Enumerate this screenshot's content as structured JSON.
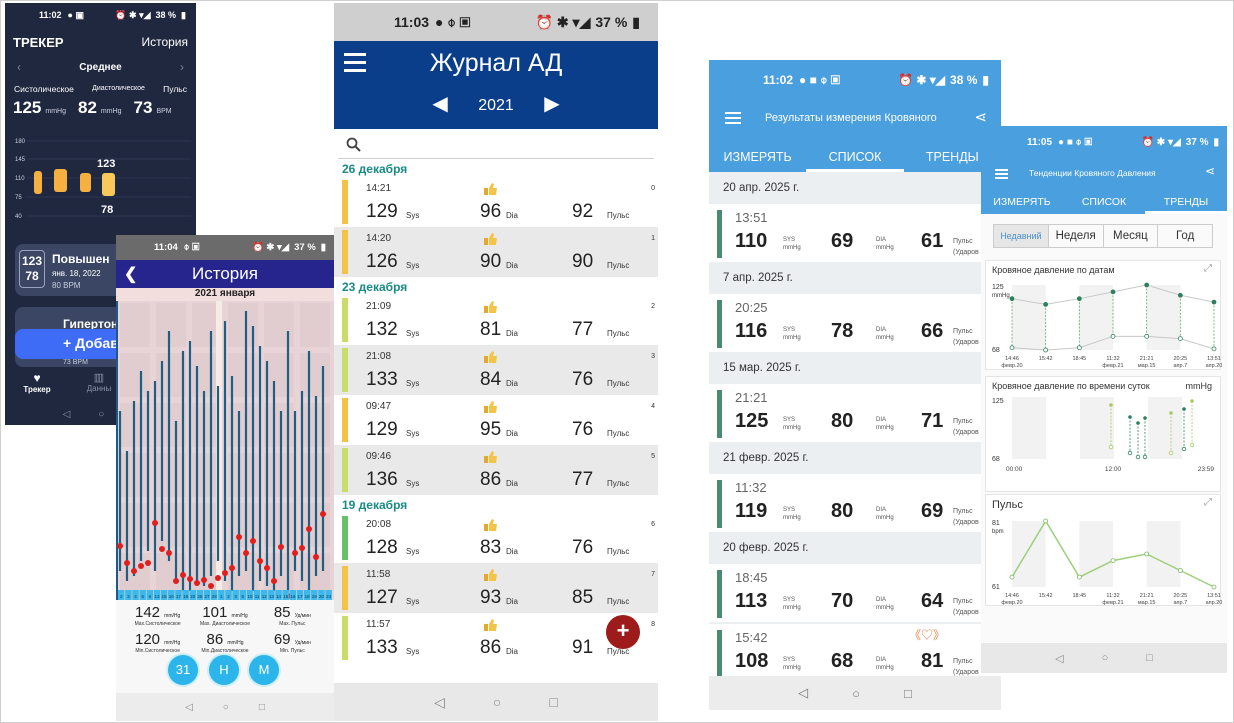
{
  "screen1": {
    "status": {
      "time": "11:02",
      "battery": "38 %"
    },
    "title": "ТРЕКЕР",
    "history_link": "История",
    "period": "Среднее",
    "headers": {
      "sys": "Систолическое",
      "dia": "Диастолическое",
      "pulse": "Пульс"
    },
    "values": {
      "sys": "125",
      "sys_unit": "mmHg",
      "dia": "82",
      "dia_unit": "mmHg",
      "pulse": "73",
      "pulse_unit": "BPM"
    },
    "y_ticks": [
      "180",
      "145",
      "110",
      "75",
      "40"
    ],
    "bar_label_high": "123",
    "bar_label_low": "78",
    "bar_color": "#f5b040",
    "card1": {
      "sys": "123",
      "dia": "78",
      "title": "Повышен",
      "date": "янв. 18, 2022",
      "pulse": "80 BPM"
    },
    "card2": {
      "title": "Гипертони",
      "pulse": "73 BPM"
    },
    "add_button": "+ Добав",
    "tabs": {
      "tracker": "Трекер",
      "data": "Данны"
    }
  },
  "screen2": {
    "status": {
      "time": "11:04",
      "battery": "37 %"
    },
    "title": "История",
    "month": "2021 января",
    "day_labels": [
      "2",
      "3",
      "4",
      "5",
      "6",
      "13",
      "15",
      "16",
      "17",
      "18",
      "20",
      "26",
      "27",
      "28",
      "1",
      "2",
      "3",
      "5",
      "10",
      "11",
      "12",
      "13",
      "14",
      "15",
      "16",
      "17",
      "18",
      "19",
      "20",
      "23"
    ],
    "stats": [
      {
        "value": "142",
        "unit": "mm/Hg",
        "label": "Max.Систолическое"
      },
      {
        "value": "101",
        "unit": "mm/Hg",
        "label": "Max. Диастолическое"
      },
      {
        "value": "85",
        "unit": "Уд/мин",
        "label": "Max. Пульс"
      },
      {
        "value": "120",
        "unit": "mm/Hg",
        "label": "Min.Систолическое"
      },
      {
        "value": "86",
        "unit": "mm/Hg",
        "label": "Min.Диастолическое"
      },
      {
        "value": "69",
        "unit": "Уд/мин",
        "label": "Min. Пульс"
      }
    ],
    "buttons": [
      "31",
      "Н",
      "М"
    ]
  },
  "screen3": {
    "status": {
      "time": "11:03",
      "battery": "37 %"
    },
    "title": "Журнал АД",
    "year": "2021",
    "groups": [
      {
        "date": "26 декабря",
        "rows": [
          {
            "time": "14:21",
            "sys": "129",
            "dia": "96",
            "pulse": "92",
            "no": "0",
            "color": "#f5c146"
          },
          {
            "time": "14:20",
            "sys": "126",
            "dia": "90",
            "pulse": "90",
            "no": "1",
            "color": "#f5c146"
          }
        ]
      },
      {
        "date": "23 декабря",
        "rows": [
          {
            "time": "21:09",
            "sys": "132",
            "dia": "81",
            "pulse": "77",
            "no": "2",
            "color": "#c9dd6a"
          },
          {
            "time": "21:08",
            "sys": "133",
            "dia": "84",
            "pulse": "76",
            "no": "3",
            "color": "#c9dd6a"
          },
          {
            "time": "09:47",
            "sys": "129",
            "dia": "95",
            "pulse": "76",
            "no": "4",
            "color": "#f5c146"
          },
          {
            "time": "09:46",
            "sys": "136",
            "dia": "86",
            "pulse": "77",
            "no": "5",
            "color": "#c9dd6a"
          }
        ]
      },
      {
        "date": "19 декабря",
        "rows": [
          {
            "time": "20:08",
            "sys": "128",
            "dia": "83",
            "pulse": "76",
            "no": "6",
            "color": "#6cbf6a"
          },
          {
            "time": "11:58",
            "sys": "127",
            "dia": "93",
            "pulse": "85",
            "no": "7",
            "color": "#f5c146"
          },
          {
            "time": "11:57",
            "sys": "133",
            "dia": "86",
            "pulse": "91",
            "no": "8",
            "color": "#c9dd6a"
          }
        ]
      }
    ],
    "units": {
      "sys": "Sys",
      "dia": "Dia",
      "pulse": "Пульс"
    },
    "fab": "+"
  },
  "screen4": {
    "status": {
      "time": "11:02",
      "battery": "38 %"
    },
    "title": "Результаты измерения Кровяного",
    "tabs": [
      "ИЗМЕРЯТЬ",
      "СПИСОК",
      "ТРЕНДЫ"
    ],
    "units": {
      "sys": "SYS",
      "dia": "DIA",
      "mm": "mmHg",
      "pulse": "Пульс",
      "pulse_unit": "(Ударов"
    },
    "entries": [
      {
        "date": "20 апр. 2025 г.",
        "time": "13:51",
        "sys": "110",
        "dia": "69",
        "pulse": "61"
      },
      {
        "date": "7 апр. 2025 г.",
        "time": "20:25",
        "sys": "116",
        "dia": "78",
        "pulse": "66"
      },
      {
        "date": "15 мар. 2025 г.",
        "time": "21:21",
        "sys": "125",
        "dia": "80",
        "pulse": "71"
      },
      {
        "date": "21 февр. 2025 г.",
        "time": "11:32",
        "sys": "119",
        "dia": "80",
        "pulse": "69"
      },
      {
        "date": "20 февр. 2025 г.",
        "time": "18:45",
        "sys": "113",
        "dia": "70",
        "pulse": "64"
      },
      {
        "date": "",
        "time": "15:42",
        "sys": "108",
        "dia": "68",
        "pulse": "81"
      }
    ],
    "accent": "#4a9fdf"
  },
  "screen5": {
    "status": {
      "time": "11:05",
      "battery": "37 %"
    },
    "title": "Тенденции Кровяного Давления",
    "tabs": [
      "ИЗМЕРЯТЬ",
      "СПИСОК",
      "ТРЕНДЫ"
    ],
    "segments": [
      "Недавний",
      "Неделя",
      "Месяц",
      "Год"
    ],
    "chart1": {
      "title": "Кровяное давление по датам",
      "y_top": "125",
      "y_unit": "mmHg",
      "y_bottom": "68",
      "x_labels": [
        [
          "14:46",
          "февр.20"
        ],
        [
          "15:42",
          ""
        ],
        [
          "18:45",
          ""
        ],
        [
          "11:32",
          "февр.21"
        ],
        [
          "21:21",
          "мар.15"
        ],
        [
          "20:25",
          "апр.7"
        ],
        [
          "13:51",
          "апр.20"
        ]
      ]
    },
    "chart2": {
      "title": "Кровяное давление по времени суток",
      "y_unit": "mmHg",
      "y_top": "125",
      "y_bottom": "68",
      "x_labels": [
        "00:00",
        "12:00",
        "23:59"
      ]
    },
    "chart3": {
      "title": "Пульс",
      "y_top": "81",
      "y_unit": "bpm",
      "y_bottom": "61",
      "x_labels": [
        [
          "14:46",
          "февр.20"
        ],
        [
          "15:42",
          ""
        ],
        [
          "18:45",
          ""
        ],
        [
          "11:32",
          "февр.21"
        ],
        [
          "21:21",
          "мар.15"
        ],
        [
          "20:25",
          "апр.7"
        ],
        [
          "13:51",
          "апр.20"
        ]
      ]
    }
  },
  "chart_data": [
    {
      "type": "line",
      "title": "Кровяное давление по датам",
      "categories": [
        "14:46",
        "15:42",
        "18:45",
        "11:32",
        "21:21",
        "20:25",
        "13:51"
      ],
      "series": [
        {
          "values": [
            113,
            108,
            113,
            119,
            125,
            116,
            110
          ]
        },
        {
          "values": [
            70,
            68,
            70,
            80,
            80,
            78,
            69
          ]
        }
      ],
      "ylim": [
        68,
        125
      ]
    },
    {
      "type": "line",
      "title": "Пульс",
      "categories": [
        "14:46",
        "15:42",
        "18:45",
        "11:32",
        "21:21",
        "20:25",
        "13:51"
      ],
      "series": [
        {
          "values": [
            64,
            81,
            64,
            69,
            71,
            66,
            61
          ]
        }
      ],
      "ylim": [
        61,
        81
      ]
    }
  ]
}
